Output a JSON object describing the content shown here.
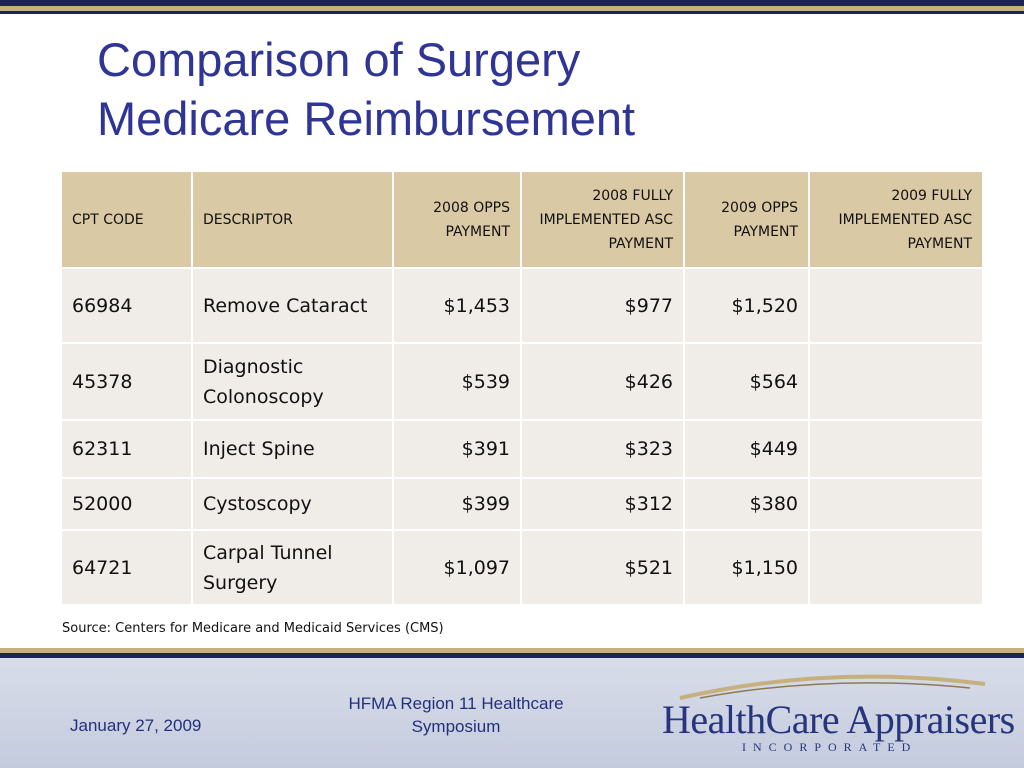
{
  "slide": {
    "title_line1": "Comparison of Surgery",
    "title_line2": "Medicare Reimbursement"
  },
  "table": {
    "headers": [
      "CPT CODE",
      "DESCRIPTOR",
      "2008 OPPS PAYMENT",
      "2008 FULLY IMPLEMENTED ASC PAYMENT",
      "2009 OPPS PAYMENT",
      "2009 FULLY IMPLEMENTED ASC PAYMENT"
    ],
    "rows": [
      {
        "code": "66984",
        "descriptor": "Remove Cataract",
        "opps_2008": "$1,453",
        "asc_2008": "$977",
        "opps_2009": "$1,520",
        "asc_2009": ""
      },
      {
        "code": "45378",
        "descriptor": "Diagnostic Colonoscopy",
        "opps_2008": "$539",
        "asc_2008": "$426",
        "opps_2009": "$564",
        "asc_2009": ""
      },
      {
        "code": "62311",
        "descriptor": "Inject Spine",
        "opps_2008": "$391",
        "asc_2008": "$323",
        "opps_2009": "$449",
        "asc_2009": ""
      },
      {
        "code": "52000",
        "descriptor": "Cystoscopy",
        "opps_2008": "$399",
        "asc_2008": "$312",
        "opps_2009": "$380",
        "asc_2009": ""
      },
      {
        "code": "64721",
        "descriptor": "Carpal Tunnel Surgery",
        "opps_2008": "$1,097",
        "asc_2008": "$521",
        "opps_2009": "$1,150",
        "asc_2009": ""
      }
    ]
  },
  "source_note": "Source: Centers for Medicare and Medicaid Services (CMS)",
  "footer": {
    "date": "January 27, 2009",
    "event": "HFMA Region 11 Healthcare Symposium",
    "logo_name": "HealthCare Appraisers",
    "logo_sub": "INCORPORATED"
  },
  "colors": {
    "title": "#2f3595",
    "header_bg": "#d9c9a5",
    "cell_bg": "#f0ece7",
    "navy": "#1b2358",
    "gold": "#c7b07f"
  }
}
